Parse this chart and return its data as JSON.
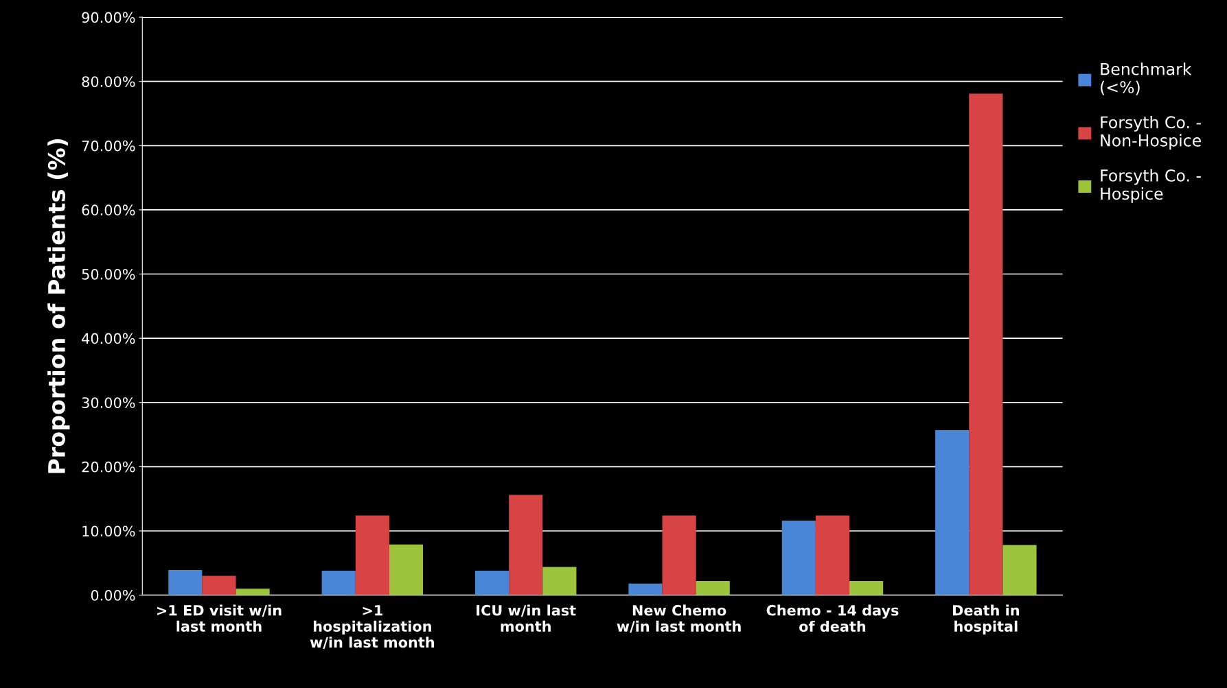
{
  "chart_data": {
    "type": "bar",
    "ylabel": "Proportion of Patients (%)",
    "categories": [
      ">1 ED visit w/in\nlast month",
      ">1\nhospitalization\nw/in last month",
      "ICU w/in last\nmonth",
      "New Chemo\nw/in last month",
      "Chemo - 14 days\nof death",
      "Death in\nhospital"
    ],
    "series": [
      {
        "name": "Benchmark\n(<%)",
        "color": "#4a86d8",
        "values": [
          3.9,
          3.8,
          3.8,
          1.8,
          11.6,
          25.7
        ]
      },
      {
        "name": "Forsyth Co. -\nNon-Hospice",
        "color": "#d84444",
        "values": [
          3.0,
          12.4,
          15.6,
          12.4,
          12.4,
          78.1
        ]
      },
      {
        "name": "Forsyth Co. -\nHospice",
        "color": "#9cc43c",
        "values": [
          1.0,
          7.9,
          4.4,
          2.2,
          2.2,
          7.8
        ]
      }
    ],
    "ylim": [
      0,
      90
    ],
    "yticks": [
      {
        "value": 0,
        "label": "0.00%"
      },
      {
        "value": 10,
        "label": "10.00%"
      },
      {
        "value": 20,
        "label": "20.00%"
      },
      {
        "value": 30,
        "label": "30.00%"
      },
      {
        "value": 40,
        "label": "40.00%"
      },
      {
        "value": 50,
        "label": "50.00%"
      },
      {
        "value": 60,
        "label": "60.00%"
      },
      {
        "value": 70,
        "label": "70.00%"
      },
      {
        "value": 80,
        "label": "80.00%"
      },
      {
        "value": 90,
        "label": "90.00%"
      }
    ],
    "grid": "y",
    "legend": "right"
  }
}
